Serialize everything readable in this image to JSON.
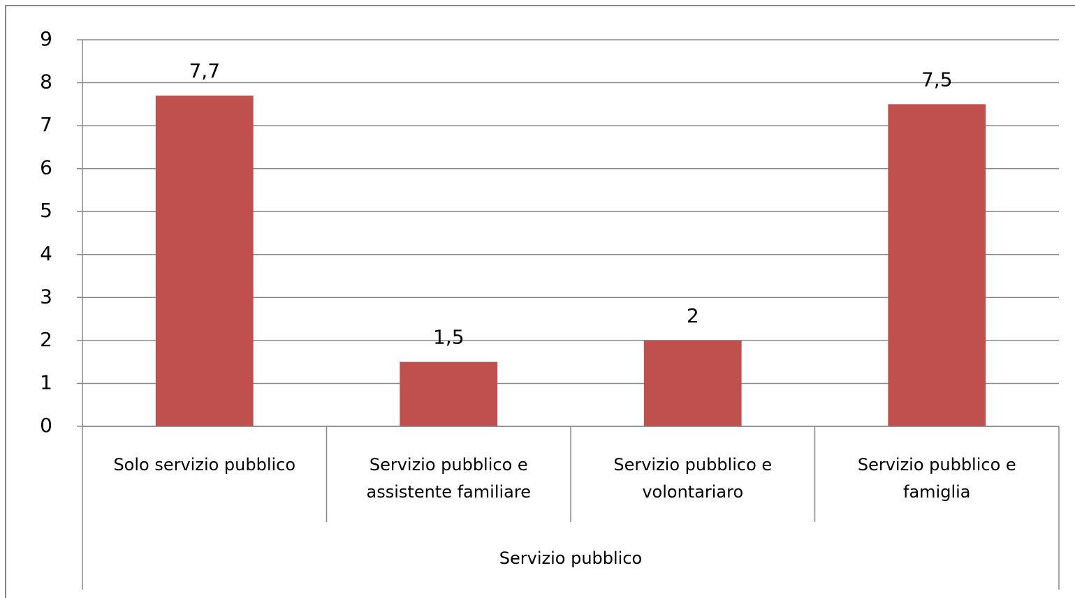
{
  "chart_data": {
    "type": "bar",
    "categories": [
      "Solo servizio pubblico",
      "Servizio pubblico e assistente familiare",
      "Servizio pubblico e volontariaro",
      "Servizio pubblico e famiglia"
    ],
    "category_group": "Servizio pubblico",
    "values": [
      7.7,
      1.5,
      2,
      7.5
    ],
    "value_labels": [
      "7,7",
      "1,5",
      "2",
      "7,5"
    ],
    "color": "#c0504d",
    "ylim": [
      0,
      9
    ],
    "yticks": [
      0,
      1,
      2,
      3,
      4,
      5,
      6,
      7,
      8,
      9
    ],
    "grid": true
  }
}
